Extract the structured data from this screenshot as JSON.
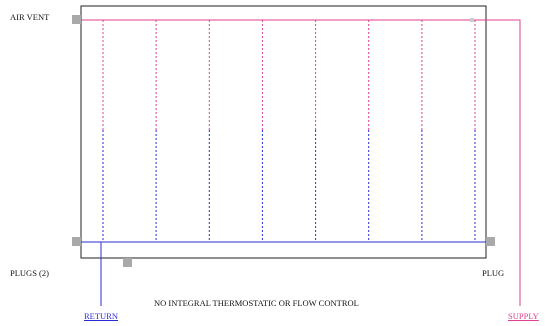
{
  "labels": {
    "air_vent": "AIR VENT",
    "plugs": "PLUGS (2)",
    "plug": "PLUG",
    "note": "NO INTEGRAL THERMOSTATIC OR FLOW CONTROL",
    "return": "RETURN",
    "supply": "SUPPLY"
  },
  "colors": {
    "supply": "#e0408f",
    "return": "#2b2bd6",
    "frame": "#222222",
    "fitting": "#a9a9a9"
  },
  "tube_count": 8
}
